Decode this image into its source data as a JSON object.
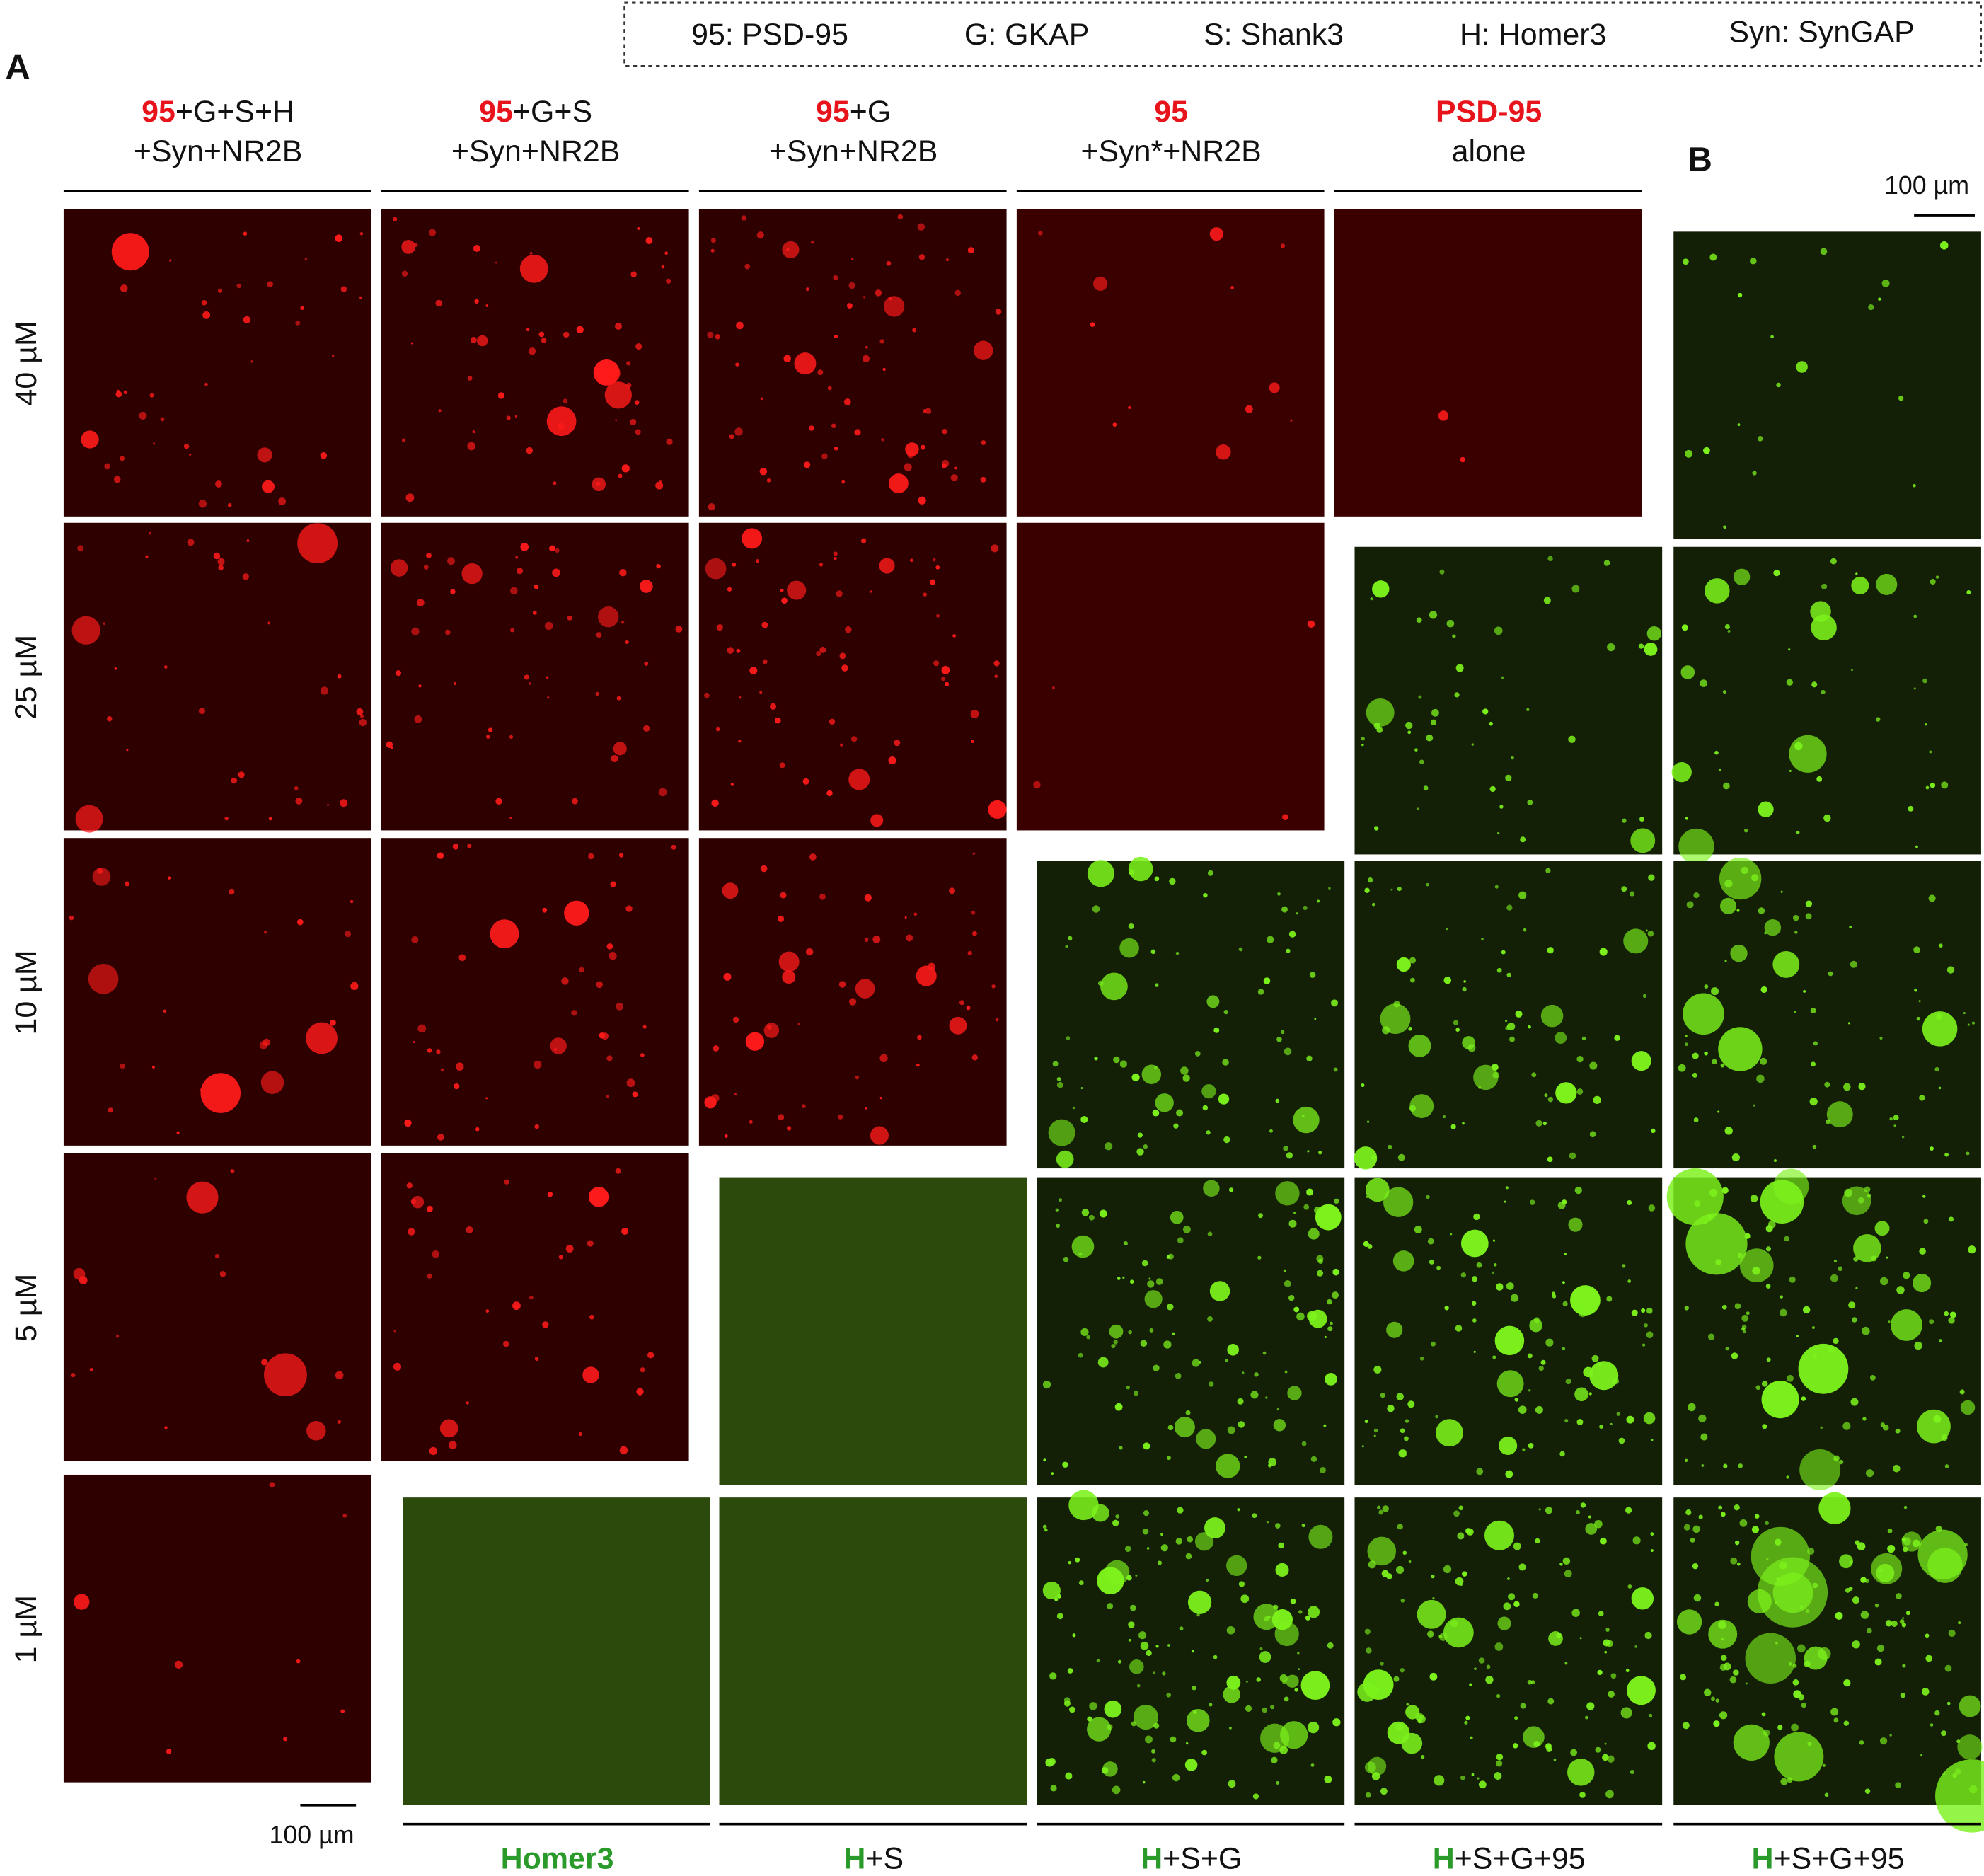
{
  "legend": [
    "95: PSD-95",
    "G: GKAP",
    "S: Shank3",
    "H: Homer3",
    "Syn: SynGAP"
  ],
  "panel_labels": [
    "A",
    "B"
  ],
  "top_columns": [
    {
      "bold": "95",
      "rest": "+G+S+H",
      "line2": "+Syn+NR2B"
    },
    {
      "bold": "95",
      "rest": "+G+S",
      "line2": "+Syn+NR2B"
    },
    {
      "bold": "95",
      "rest": "+G",
      "line2": "+Syn+NR2B"
    },
    {
      "bold": "95",
      "line2": "+Syn*+NR2B"
    },
    {
      "bold": "PSD-95",
      "line2": "alone"
    }
  ],
  "row_labels": [
    "40 µM",
    "25 µM",
    "10 µM",
    "5 µM",
    "1 µM"
  ],
  "bottom_columns": [
    {
      "bold": "Homer3"
    },
    {
      "bold": "H",
      "rest": "+S"
    },
    {
      "bold": "H",
      "rest": "+S+G"
    },
    {
      "bold": "H",
      "rest": "+S+G+95"
    },
    {
      "bold": "H",
      "rest": "+S+G+95"
    }
  ],
  "scale_bars": [
    "100 µm",
    "100 µm"
  ]
}
